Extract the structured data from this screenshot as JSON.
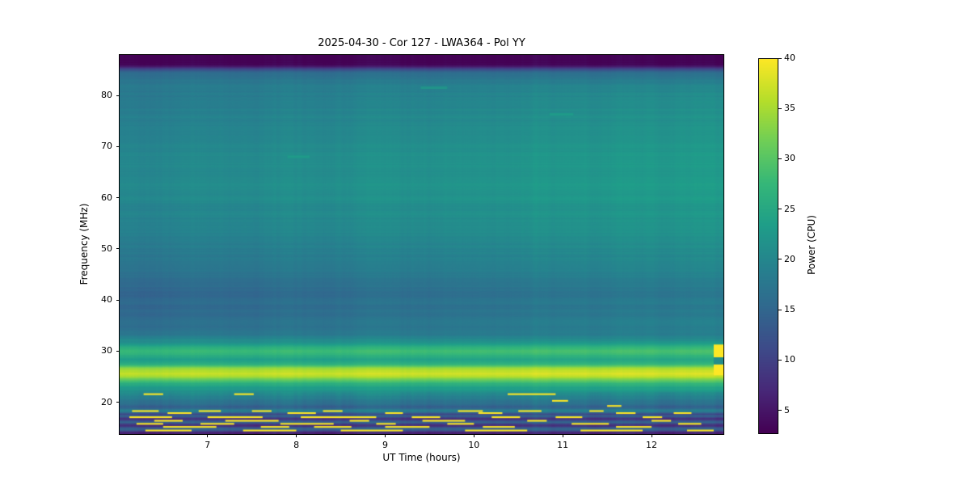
{
  "chart_data": {
    "type": "heatmap",
    "title": "2025-04-30 - Cor 127 - LWA364 - Pol YY",
    "xlabel": "UT Time (hours)",
    "ylabel": "Frequency (MHz)",
    "colorbar_label": "Power (CPU)",
    "x_range": [
      6.01,
      12.81
    ],
    "x_ticks": [
      7,
      8,
      9,
      10,
      11,
      12
    ],
    "y_range": [
      13.8,
      87.9
    ],
    "y_ticks": [
      20,
      30,
      40,
      50,
      60,
      70,
      80
    ],
    "value_range": [
      2.8,
      40
    ],
    "colorbar_ticks": [
      5,
      10,
      15,
      20,
      25,
      30,
      35,
      40
    ],
    "colormap": "viridis",
    "colormap_stops": [
      "#440154",
      "#482878",
      "#3e4a89",
      "#31688e",
      "#26828e",
      "#1f9e89",
      "#35b779",
      "#6ece58",
      "#b5de2b",
      "#fde725"
    ],
    "frequency_power_profile": [
      [
        13.8,
        7
      ],
      [
        14.0,
        5.5
      ],
      [
        14.2,
        8
      ],
      [
        14.45,
        12
      ],
      [
        14.7,
        15
      ],
      [
        15.0,
        13
      ],
      [
        15.3,
        9
      ],
      [
        15.55,
        7.5
      ],
      [
        15.8,
        11
      ],
      [
        16.1,
        15
      ],
      [
        16.35,
        13
      ],
      [
        16.6,
        9
      ],
      [
        16.85,
        8
      ],
      [
        17.1,
        12
      ],
      [
        17.35,
        15
      ],
      [
        17.6,
        10
      ],
      [
        17.85,
        13
      ],
      [
        18.1,
        17
      ],
      [
        18.4,
        19
      ],
      [
        18.8,
        15.5
      ],
      [
        19.1,
        14
      ],
      [
        19.5,
        15.5
      ],
      [
        20.0,
        17
      ],
      [
        20.6,
        18.5
      ],
      [
        21.2,
        19.5
      ],
      [
        22.0,
        21.5
      ],
      [
        23.0,
        24
      ],
      [
        23.8,
        27
      ],
      [
        24.4,
        31
      ],
      [
        25.0,
        35.5
      ],
      [
        25.6,
        37
      ],
      [
        26.2,
        36.5
      ],
      [
        26.8,
        33
      ],
      [
        27.3,
        28
      ],
      [
        27.8,
        25
      ],
      [
        28.3,
        24
      ],
      [
        28.9,
        25
      ],
      [
        29.5,
        27.5
      ],
      [
        30.1,
        28.5
      ],
      [
        30.7,
        26
      ],
      [
        31.3,
        23
      ],
      [
        32.0,
        21
      ],
      [
        33.0,
        18.5
      ],
      [
        34.0,
        17.5
      ],
      [
        35.0,
        16.8
      ],
      [
        36.5,
        16.2
      ],
      [
        38.0,
        15.8
      ],
      [
        39.5,
        16.0
      ],
      [
        41.0,
        15.6
      ],
      [
        42.5,
        16.0
      ],
      [
        43.5,
        16.5
      ],
      [
        44.5,
        17.3
      ],
      [
        46.0,
        17.8
      ],
      [
        48.0,
        18.3
      ],
      [
        50.0,
        18.8
      ],
      [
        53.0,
        19.5
      ],
      [
        56.0,
        20.2
      ],
      [
        59.0,
        20.6
      ],
      [
        62.0,
        21.0
      ],
      [
        65.0,
        21.0
      ],
      [
        68.0,
        20.6
      ],
      [
        71.0,
        20.2
      ],
      [
        74.0,
        19.8
      ],
      [
        77.0,
        19.3
      ],
      [
        80.0,
        18.8
      ],
      [
        82.5,
        18.0
      ],
      [
        84.3,
        16.5
      ],
      [
        85.0,
        12
      ],
      [
        85.6,
        6
      ],
      [
        86.0,
        3.2
      ],
      [
        87.9,
        3.0
      ]
    ],
    "time_trend": {
      "high_band": {
        "f_min": 32,
        "f_max": 85,
        "delta_start": -0.8,
        "delta_end": 2.2
      },
      "emission_band": {
        "f_min": 22,
        "f_max": 32,
        "delta_start": -0.5,
        "delta_end": 1.0
      }
    },
    "rfi_streaks": [
      [
        21.6,
        6.28,
        6.5,
        40
      ],
      [
        21.6,
        7.3,
        7.52,
        40
      ],
      [
        21.6,
        10.38,
        10.92,
        40
      ],
      [
        20.3,
        10.88,
        11.06,
        40
      ],
      [
        19.3,
        11.5,
        11.66,
        40
      ],
      [
        18.3,
        6.15,
        6.45,
        40
      ],
      [
        18.3,
        6.9,
        7.15,
        40
      ],
      [
        18.3,
        7.5,
        7.72,
        40
      ],
      [
        18.3,
        8.3,
        8.52,
        40
      ],
      [
        18.3,
        9.82,
        10.1,
        40
      ],
      [
        18.3,
        10.5,
        10.76,
        40
      ],
      [
        18.3,
        11.3,
        11.46,
        40
      ],
      [
        17.9,
        6.55,
        6.82,
        40
      ],
      [
        17.9,
        7.9,
        8.22,
        40
      ],
      [
        17.9,
        9.0,
        9.2,
        40
      ],
      [
        17.9,
        10.05,
        10.32,
        40
      ],
      [
        17.9,
        11.6,
        11.82,
        40
      ],
      [
        17.9,
        12.25,
        12.45,
        40
      ],
      [
        17.1,
        6.12,
        6.6,
        40
      ],
      [
        17.1,
        7.0,
        7.62,
        40
      ],
      [
        17.1,
        8.05,
        8.9,
        40
      ],
      [
        17.1,
        9.3,
        9.62,
        40
      ],
      [
        17.1,
        10.2,
        10.52,
        40
      ],
      [
        17.1,
        10.92,
        11.22,
        40
      ],
      [
        17.1,
        11.9,
        12.12,
        40
      ],
      [
        16.4,
        6.4,
        6.72,
        40
      ],
      [
        16.4,
        7.2,
        7.8,
        40
      ],
      [
        16.4,
        8.6,
        8.82,
        40
      ],
      [
        16.4,
        9.42,
        9.9,
        40
      ],
      [
        16.4,
        10.6,
        10.82,
        40
      ],
      [
        16.4,
        12.0,
        12.22,
        40
      ],
      [
        15.8,
        6.2,
        6.5,
        40
      ],
      [
        15.8,
        6.92,
        7.3,
        40
      ],
      [
        15.8,
        7.82,
        8.42,
        40
      ],
      [
        15.8,
        8.9,
        9.12,
        40
      ],
      [
        15.8,
        9.7,
        10.0,
        40
      ],
      [
        15.8,
        11.1,
        11.52,
        40
      ],
      [
        15.8,
        12.3,
        12.56,
        40
      ],
      [
        15.2,
        6.5,
        7.1,
        40
      ],
      [
        15.2,
        7.6,
        7.92,
        40
      ],
      [
        15.2,
        8.2,
        8.62,
        40
      ],
      [
        15.2,
        9.0,
        9.5,
        40
      ],
      [
        15.2,
        10.1,
        10.46,
        40
      ],
      [
        15.2,
        11.6,
        12.0,
        40
      ],
      [
        14.5,
        6.3,
        6.82,
        40
      ],
      [
        14.5,
        7.4,
        8.0,
        40
      ],
      [
        14.5,
        8.5,
        9.2,
        40
      ],
      [
        14.5,
        9.9,
        10.6,
        40
      ],
      [
        14.5,
        11.2,
        11.9,
        40
      ],
      [
        14.5,
        12.4,
        12.7,
        40
      ],
      [
        76.3,
        10.85,
        11.12,
        23,
        0.5
      ],
      [
        68.0,
        7.9,
        8.15,
        23,
        0.5
      ],
      [
        81.5,
        9.4,
        9.7,
        22,
        0.5
      ]
    ],
    "hot_spots": [
      {
        "t": [
          12.7,
          12.81
        ],
        "f": [
          28.8,
          31.3
        ],
        "power": 40
      },
      {
        "t": [
          12.7,
          12.81
        ],
        "f": [
          27.4,
          28.8
        ],
        "power": 21
      },
      {
        "t": [
          12.7,
          12.81
        ],
        "f": [
          25.3,
          27.4
        ],
        "power": 40
      }
    ],
    "noise": {
      "seed": 42,
      "row_amp": 0.8,
      "col_amp": 0.5
    }
  }
}
